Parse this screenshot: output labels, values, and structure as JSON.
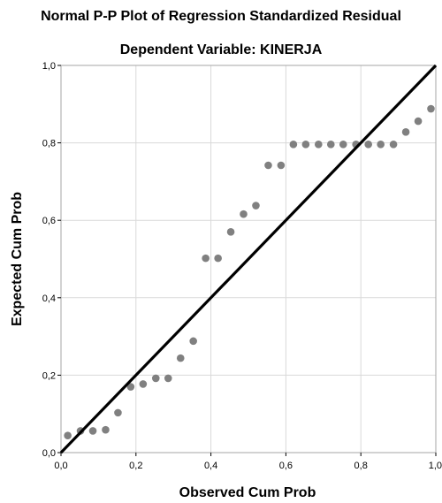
{
  "chart_data": {
    "type": "scatter",
    "title": "Normal P-P Plot of Regression Standardized Residual",
    "subtitle": "Dependent Variable: KINERJA",
    "xlabel": "Observed Cum Prob",
    "ylabel": "Expected Cum Prob",
    "xlim": [
      0,
      1
    ],
    "ylim": [
      0,
      1
    ],
    "xticks": [
      "0,0",
      "0,2",
      "0,4",
      "0,6",
      "0,8",
      "1,0"
    ],
    "yticks": [
      "0,0",
      "0,2",
      "0,4",
      "0,6",
      "0,8",
      "1,0"
    ],
    "grid": true,
    "reference_line": {
      "from": [
        0,
        0
      ],
      "to": [
        1,
        1
      ]
    },
    "points": [
      {
        "x": 0.018,
        "y": 0.044
      },
      {
        "x": 0.052,
        "y": 0.056
      },
      {
        "x": 0.085,
        "y": 0.056
      },
      {
        "x": 0.119,
        "y": 0.059
      },
      {
        "x": 0.152,
        "y": 0.103
      },
      {
        "x": 0.186,
        "y": 0.17
      },
      {
        "x": 0.219,
        "y": 0.177
      },
      {
        "x": 0.253,
        "y": 0.192
      },
      {
        "x": 0.286,
        "y": 0.192
      },
      {
        "x": 0.319,
        "y": 0.244
      },
      {
        "x": 0.353,
        "y": 0.288
      },
      {
        "x": 0.386,
        "y": 0.502
      },
      {
        "x": 0.419,
        "y": 0.502
      },
      {
        "x": 0.453,
        "y": 0.57
      },
      {
        "x": 0.487,
        "y": 0.616
      },
      {
        "x": 0.52,
        "y": 0.638
      },
      {
        "x": 0.553,
        "y": 0.742
      },
      {
        "x": 0.587,
        "y": 0.742
      },
      {
        "x": 0.62,
        "y": 0.796
      },
      {
        "x": 0.653,
        "y": 0.796
      },
      {
        "x": 0.687,
        "y": 0.796
      },
      {
        "x": 0.72,
        "y": 0.796
      },
      {
        "x": 0.753,
        "y": 0.796
      },
      {
        "x": 0.787,
        "y": 0.796
      },
      {
        "x": 0.82,
        "y": 0.796
      },
      {
        "x": 0.853,
        "y": 0.796
      },
      {
        "x": 0.887,
        "y": 0.796
      },
      {
        "x": 0.92,
        "y": 0.828
      },
      {
        "x": 0.953,
        "y": 0.856
      },
      {
        "x": 0.987,
        "y": 0.888
      }
    ],
    "colors": {
      "points": "#808080",
      "line": "#000000",
      "grid": "#d9d9d9",
      "frame": "#a6a6a6"
    }
  }
}
